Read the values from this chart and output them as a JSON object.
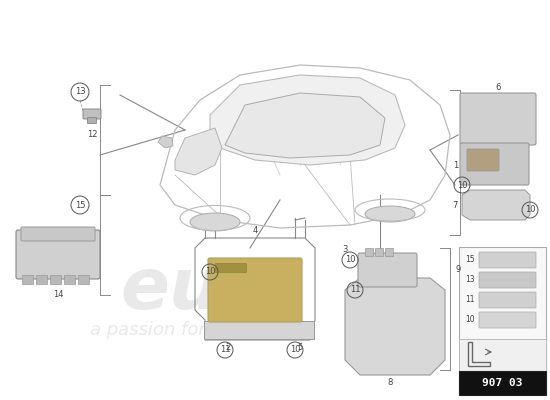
{
  "bg_color": "#ffffff",
  "line_color": "#888888",
  "text_color": "#444444",
  "title": "907 03",
  "fig_width": 5.5,
  "fig_height": 4.0,
  "dpi": 100
}
